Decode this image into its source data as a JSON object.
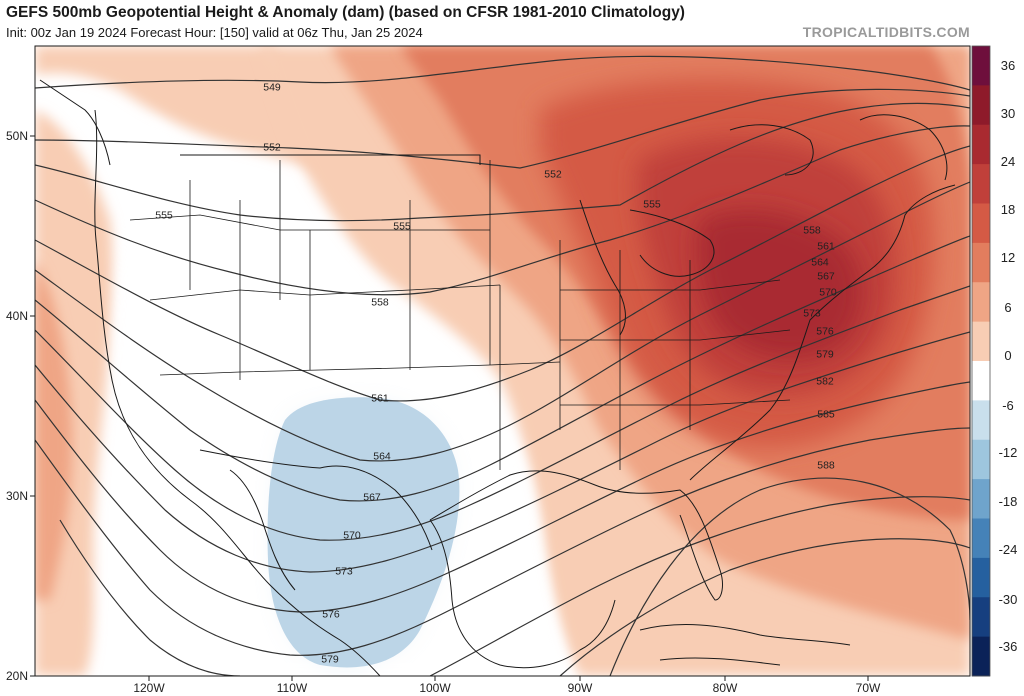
{
  "header": {
    "title": "GEFS 500mb Geopotential Height & Anomaly (dam) (based on CFSR 1981-2010 Climatology)",
    "subtitle": "Init: 00z Jan 19 2024   Forecast Hour: [150]   valid at 06z Thu, Jan 25 2024",
    "brand": "TROPICALTIDBITS.COM"
  },
  "axes": {
    "lat_labels": [
      "50N",
      "40N",
      "30N",
      "20N"
    ],
    "lon_labels": [
      "120W",
      "110W",
      "100W",
      "90W",
      "80W",
      "70W"
    ]
  },
  "colorbar": {
    "labels": [
      "36",
      "30",
      "24",
      "18",
      "12",
      "6",
      "0",
      "-6",
      "-12",
      "-18",
      "-24",
      "-30",
      "-36"
    ],
    "colors": [
      "#6e0f3c",
      "#8e1a2a",
      "#a92a30",
      "#c0403a",
      "#d45a45",
      "#e27d5e",
      "#efa585",
      "#f8cdb4",
      "#ffffff",
      "#c9dfec",
      "#9ec6de",
      "#6fa4cc",
      "#4582b8",
      "#25609f",
      "#163f7f",
      "#0b2258"
    ]
  },
  "contours": {
    "labels": [
      "549",
      "552",
      "555",
      "558",
      "561",
      "564",
      "567",
      "570",
      "573",
      "576",
      "579",
      "582",
      "585",
      "588"
    ]
  },
  "colors": {
    "border": "#1a1a1a",
    "contour": "#333333",
    "anomaly_warm": "#d45a45",
    "anomaly_cold": "#b8d3e6"
  }
}
